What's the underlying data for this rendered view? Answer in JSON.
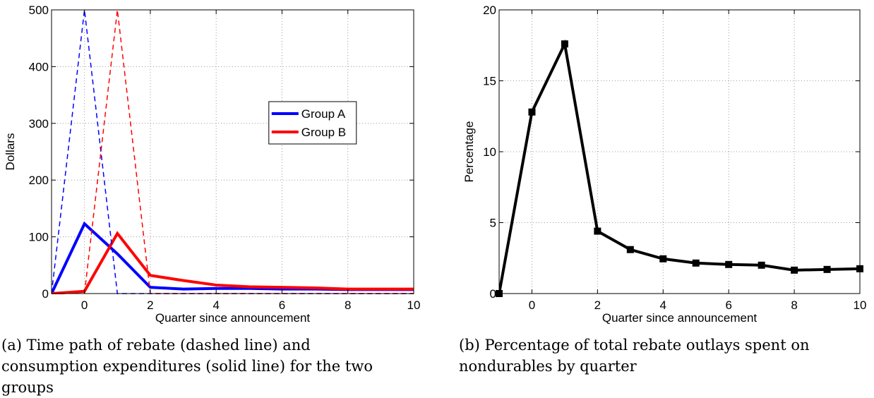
{
  "chart_data": [
    {
      "type": "line",
      "xlabel": "Quarter since announcement",
      "ylabel": "Dollars",
      "xlim": [
        -1,
        10
      ],
      "ylim": [
        0,
        500
      ],
      "xticks": [
        0,
        2,
        4,
        6,
        8,
        10
      ],
      "yticks": [
        0,
        100,
        200,
        300,
        400,
        500
      ],
      "grid": true,
      "legend": {
        "position": "top-right",
        "entries": [
          "Group A",
          "Group B"
        ]
      },
      "series": [
        {
          "name": "Group A",
          "style": "solid",
          "color": "#0000ff",
          "x": [
            -1,
            0,
            1,
            2,
            3,
            4,
            5,
            6,
            7,
            8,
            9,
            10
          ],
          "y": [
            0,
            123,
            70,
            11,
            8,
            9,
            9,
            8,
            8,
            7,
            7,
            7
          ]
        },
        {
          "name": "Group B",
          "style": "solid",
          "color": "#ff0000",
          "x": [
            -1,
            0,
            1,
            2,
            3,
            4,
            5,
            6,
            7,
            8,
            9,
            10
          ],
          "y": [
            0,
            4,
            106,
            32,
            23,
            15,
            12,
            11,
            10,
            8,
            8,
            8
          ]
        },
        {
          "style": "dashed",
          "color": "#0000ff",
          "x": [
            -1,
            0,
            1,
            2,
            10
          ],
          "y": [
            0,
            500,
            0,
            0,
            0
          ]
        },
        {
          "style": "dashed",
          "color": "#ff0000",
          "x": [
            0,
            1,
            2,
            10
          ],
          "y": [
            0,
            500,
            0,
            0
          ]
        }
      ]
    },
    {
      "type": "line",
      "xlabel": "Quarter since announcement",
      "ylabel": "Percentage",
      "xlim": [
        -1,
        10
      ],
      "ylim": [
        0,
        20
      ],
      "xticks": [
        0,
        2,
        4,
        6,
        8,
        10
      ],
      "yticks": [
        0,
        5,
        10,
        15,
        20
      ],
      "grid": true,
      "series": [
        {
          "style": "solid",
          "color": "#000000",
          "marker": "square",
          "x": [
            -1,
            0,
            1,
            2,
            3,
            4,
            5,
            6,
            7,
            8,
            9,
            10
          ],
          "y": [
            0,
            12.8,
            17.6,
            4.4,
            3.1,
            2.45,
            2.15,
            2.05,
            2.0,
            1.65,
            1.7,
            1.75
          ]
        }
      ]
    }
  ],
  "captions": {
    "a": "(a) Time path of rebate (dashed line) and consumption expenditures (solid line) for the two groups",
    "b": "(b) Percentage of total rebate outlays spent on nondurables by quarter"
  }
}
